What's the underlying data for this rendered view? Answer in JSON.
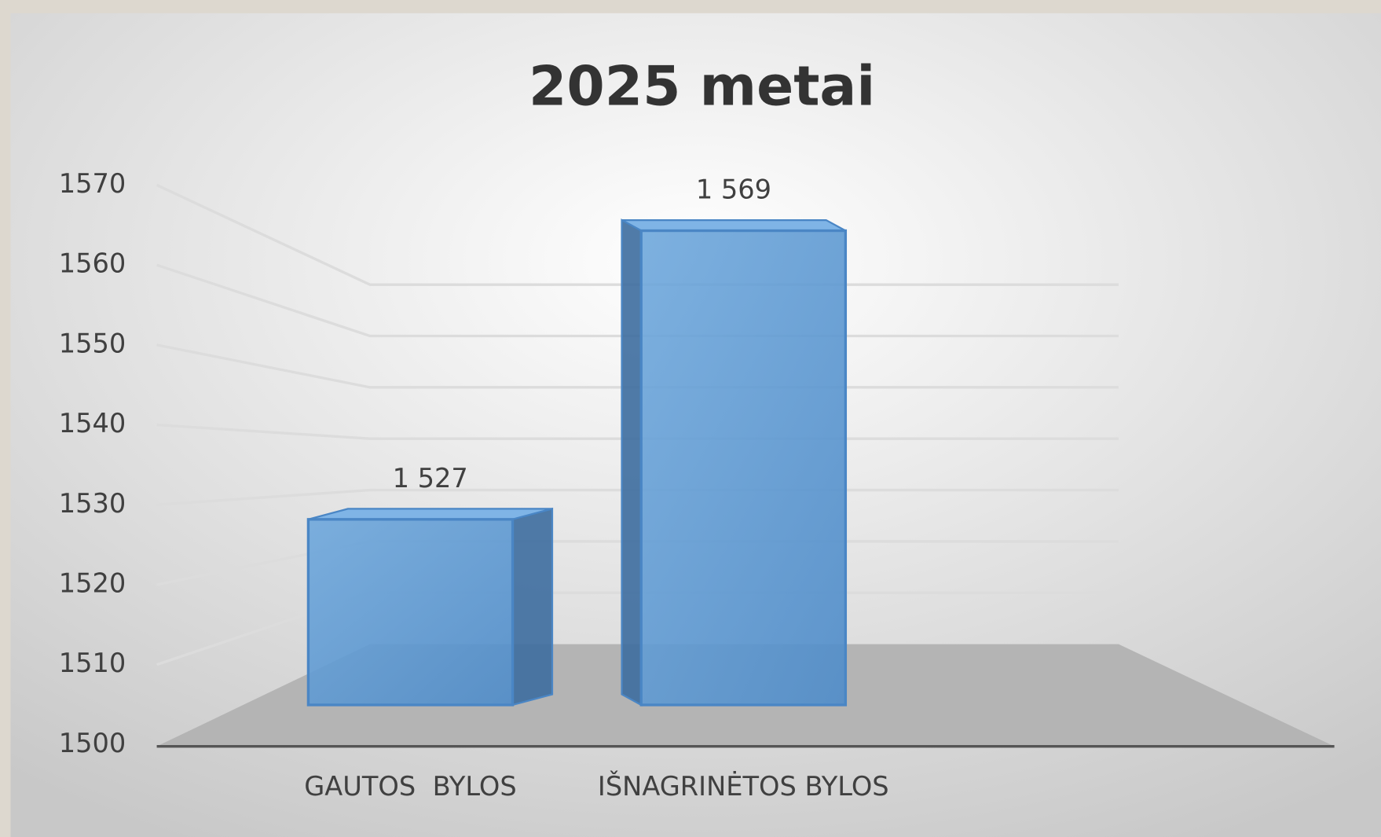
{
  "chart_data": {
    "type": "bar3d",
    "title": "2025 metai",
    "categories": [
      "GAUTOS  BYLOS",
      "IŠNAGRINĖTOS BYLOS"
    ],
    "values": [
      1527,
      1569
    ],
    "value_labels": [
      "1 527",
      "1 569"
    ],
    "color": "#5b9bd5",
    "ylim": [
      1500,
      1570
    ],
    "yticks": [
      1500,
      1510,
      1520,
      1530,
      1540,
      1550,
      1560,
      1570
    ],
    "grid": true
  }
}
